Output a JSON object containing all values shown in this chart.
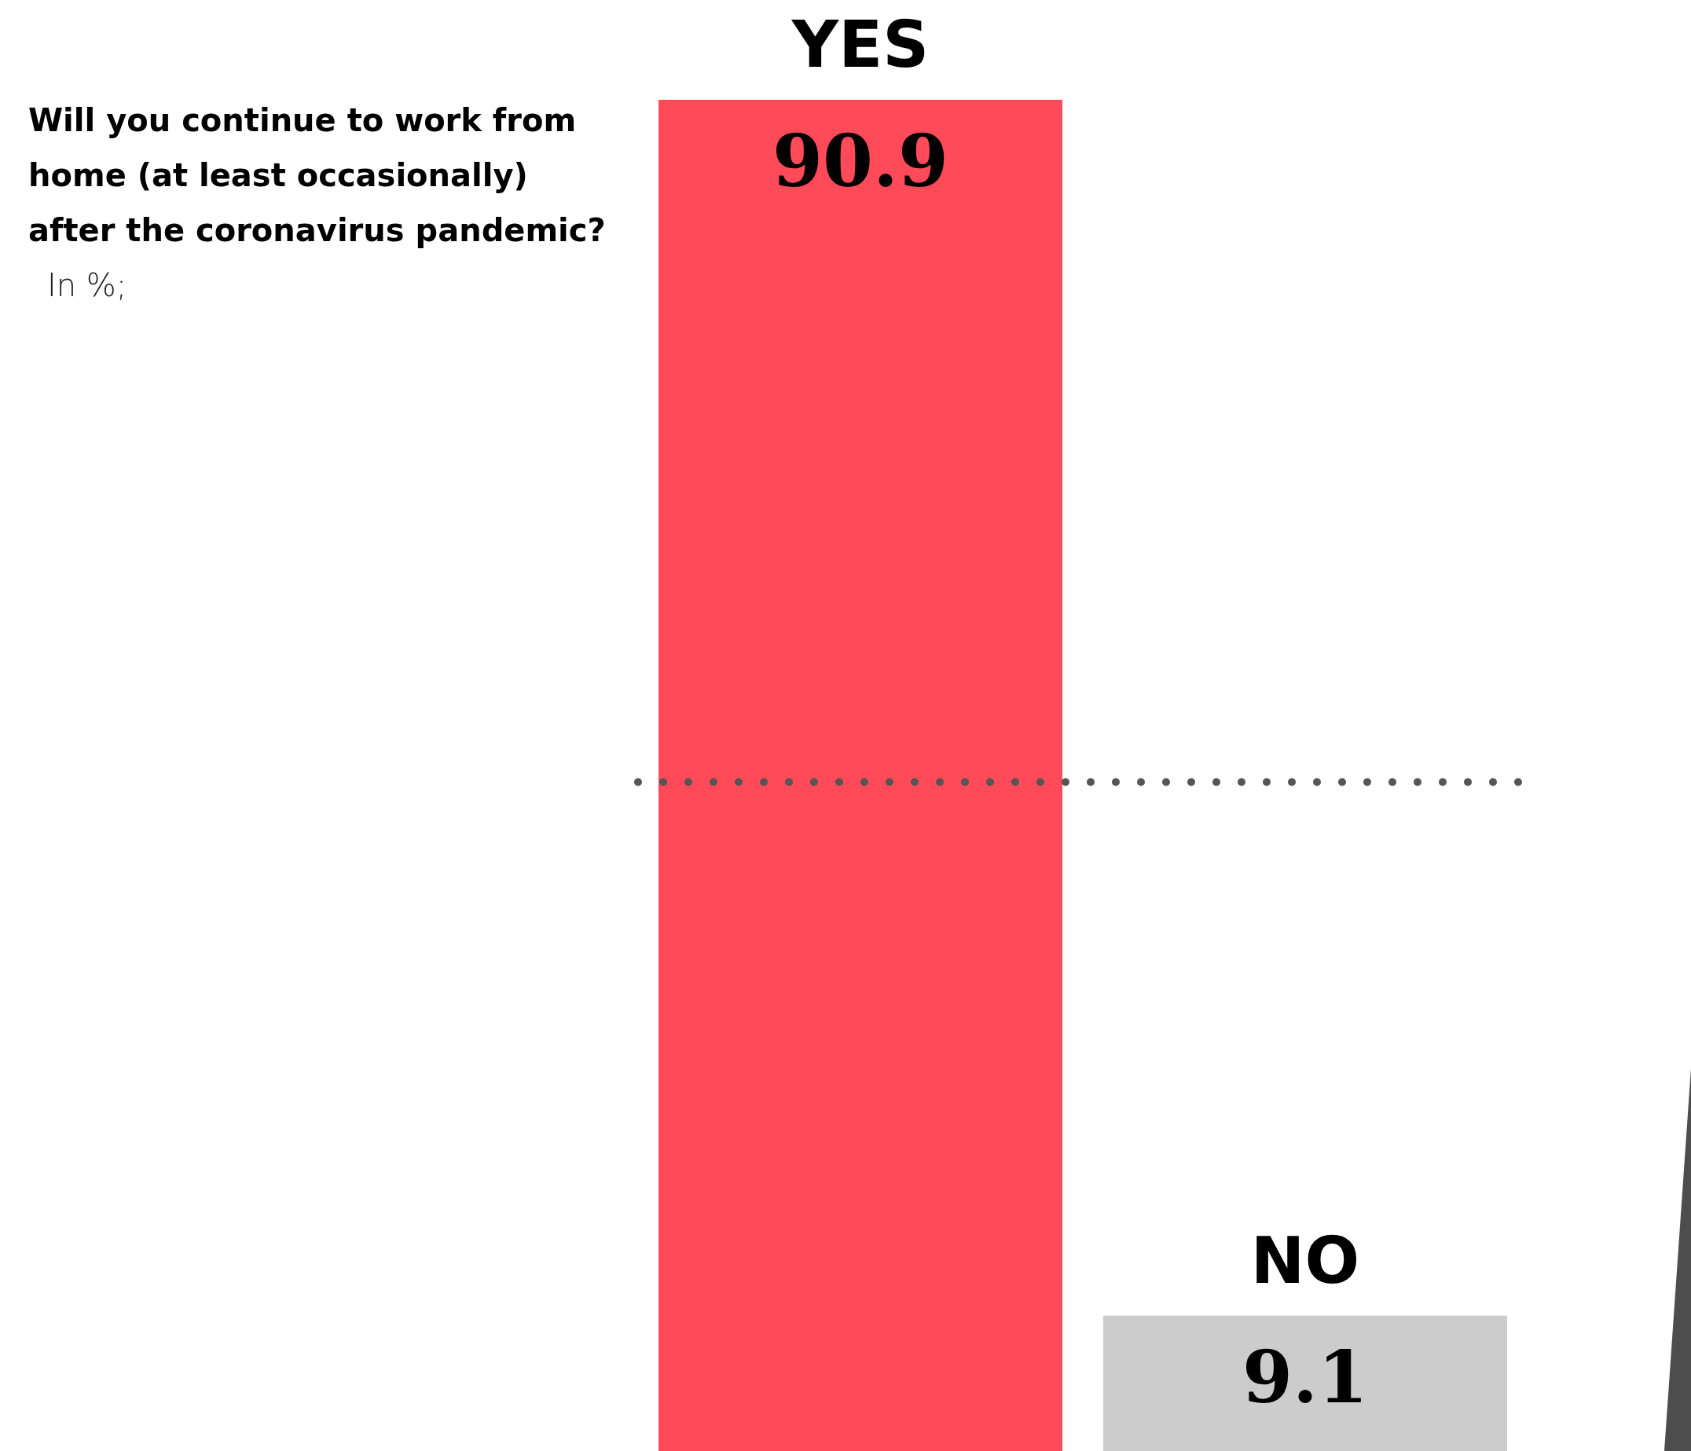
{
  "chart_data": {
    "type": "bar",
    "title": "Will you continue to work from home (at least occasionally) after the coronavirus pandemic?",
    "subtitle": "In %;",
    "categories": [
      "YES",
      "NO"
    ],
    "values": [
      90.9,
      9.1
    ],
    "colors": [
      "#ff4a5a",
      "#cccccc"
    ],
    "data_labels": true,
    "ref_lines": [
      {
        "axis": "y",
        "value": 45,
        "color": "#555555",
        "line_style": "dotted"
      }
    ]
  }
}
